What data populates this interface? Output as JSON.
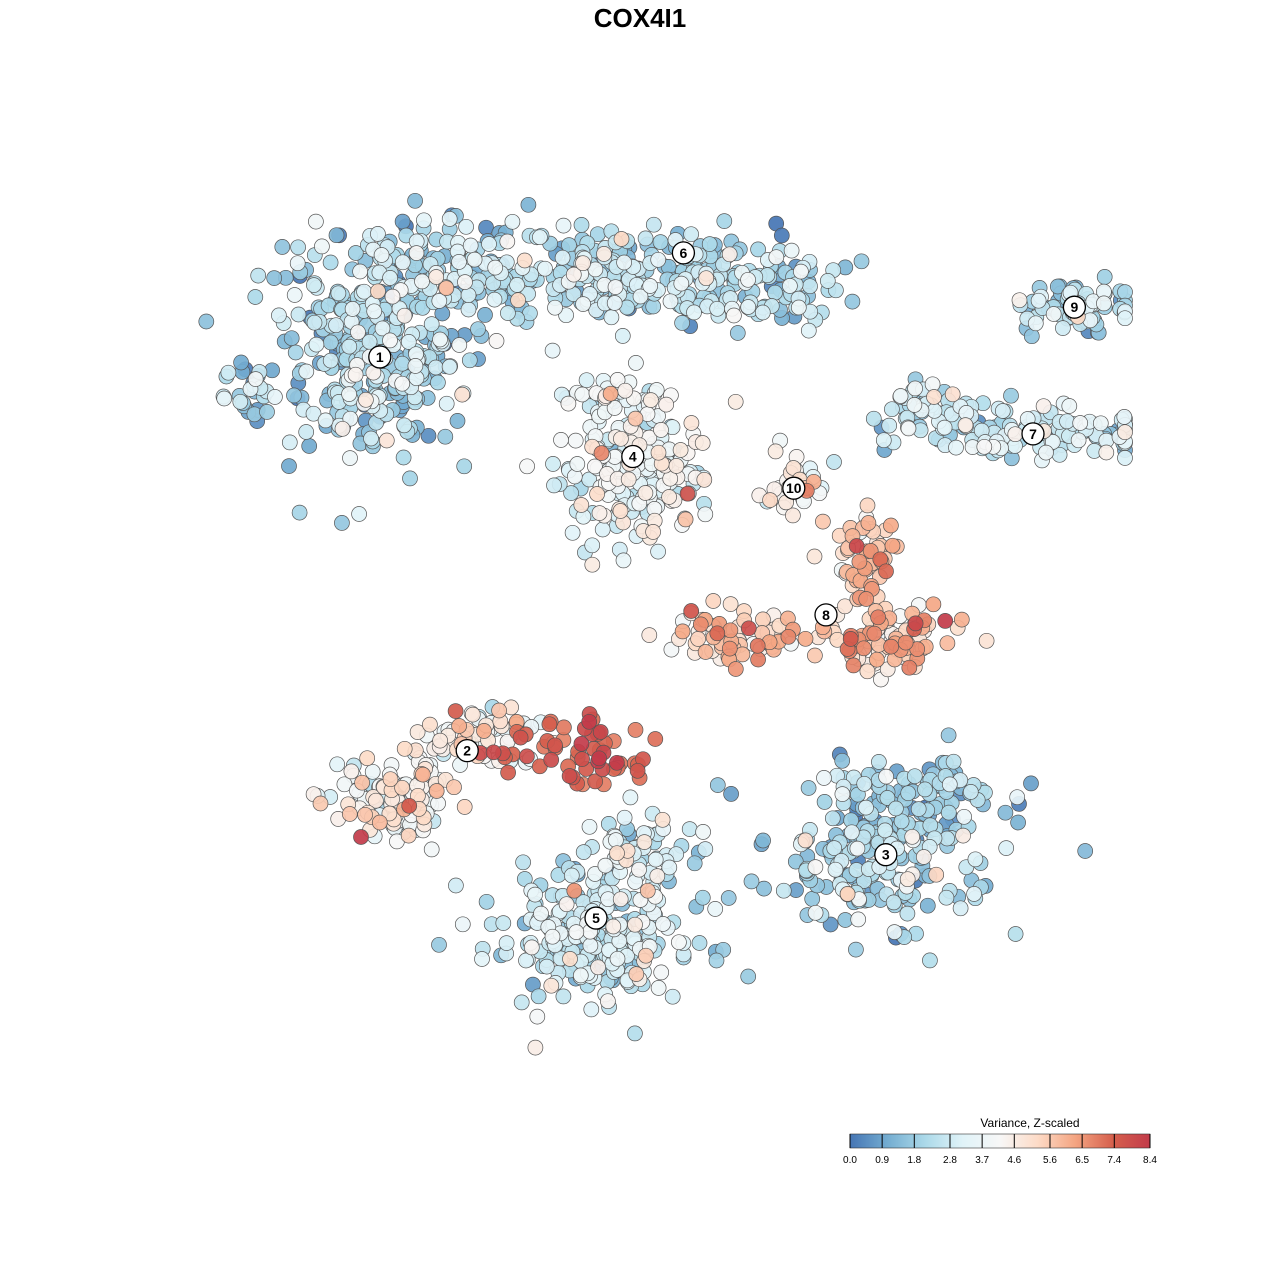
{
  "chart_data": {
    "type": "scatter",
    "title": "COX4I1",
    "xlabel": "",
    "ylabel": "",
    "grid": false,
    "legend_placement": "bottom-right",
    "colorbar": {
      "title": "Variance, Z-scaled",
      "min": 0.0,
      "max": 8.4,
      "ticks": [
        0.0,
        0.9,
        1.8,
        2.8,
        3.7,
        4.6,
        5.6,
        6.5,
        7.4,
        8.4
      ],
      "tick_labels": [
        "0.0",
        "0.9",
        "1.8",
        "2.8",
        "3.7",
        "4.6",
        "5.6",
        "6.5",
        "7.4",
        "8.4"
      ],
      "colors": [
        "#4575b4",
        "#74add1",
        "#abd9e9",
        "#e0f3f8",
        "#f7f7f7",
        "#fddbc7",
        "#f4a582",
        "#d6604d",
        "#c23b4a"
      ]
    },
    "clusters": [
      {
        "label": "1",
        "x": -0.62,
        "y": 0.62,
        "mean_value": 2.0
      },
      {
        "label": "2",
        "x": -0.43,
        "y": -0.25,
        "mean_value": 4.2
      },
      {
        "label": "3",
        "x": 0.48,
        "y": -0.48,
        "mean_value": 1.9
      },
      {
        "label": "4",
        "x": -0.07,
        "y": 0.4,
        "mean_value": 3.6
      },
      {
        "label": "5",
        "x": -0.15,
        "y": -0.62,
        "mean_value": 2.6
      },
      {
        "label": "6",
        "x": 0.04,
        "y": 0.85,
        "mean_value": 2.2
      },
      {
        "label": "7",
        "x": 0.8,
        "y": 0.45,
        "mean_value": 2.5
      },
      {
        "label": "8",
        "x": 0.35,
        "y": 0.05,
        "mean_value": 5.4
      },
      {
        "label": "9",
        "x": 0.89,
        "y": 0.73,
        "mean_value": 2.0
      },
      {
        "label": "10",
        "x": 0.28,
        "y": 0.33,
        "mean_value": 4.4
      }
    ]
  }
}
